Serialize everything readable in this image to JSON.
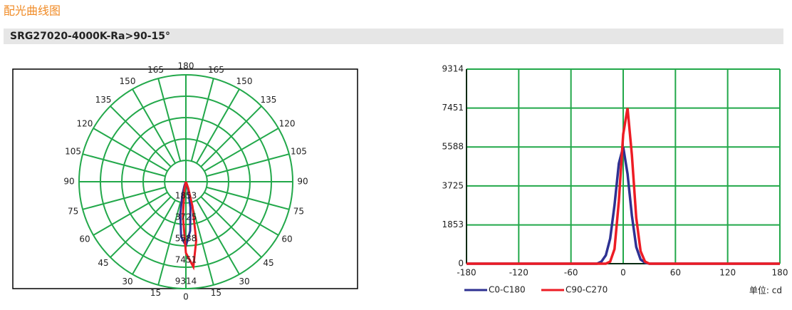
{
  "header": {
    "title": "配光曲线图",
    "model": "SRG27020-4000K-Ra>90-15°"
  },
  "chart_data": [
    {
      "type": "polar",
      "rlim": [
        0,
        9314
      ],
      "rticks": [
        1853,
        3725,
        5588,
        7451,
        9314
      ],
      "thetaticks": [
        0,
        15,
        30,
        45,
        60,
        75,
        90,
        105,
        120,
        135,
        150,
        165,
        180
      ],
      "grid": true,
      "grid_color": "#22a84a"
    },
    {
      "type": "line",
      "x": [
        -180,
        -30,
        -25,
        -20,
        -15,
        -10,
        -5,
        0,
        5,
        10,
        15,
        20,
        25,
        30,
        180
      ],
      "series": [
        {
          "name": "C0-C180",
          "color": "#2e3192",
          "values": [
            0,
            0,
            100,
            400,
            1200,
            2800,
            4800,
            5588,
            4300,
            2300,
            800,
            200,
            50,
            0,
            0
          ]
        },
        {
          "name": "C90-C270",
          "color": "#ed1c24",
          "values": [
            0,
            0,
            0,
            0,
            100,
            700,
            3000,
            6200,
            7451,
            5200,
            2200,
            600,
            100,
            0,
            0
          ]
        }
      ],
      "xlim": [
        -180,
        180
      ],
      "ylim": [
        0,
        9314
      ],
      "xticks": [
        -180,
        -120,
        -60,
        0,
        60,
        120,
        180
      ],
      "yticks": [
        0,
        1853,
        3725,
        5588,
        7451,
        9314
      ],
      "grid": true,
      "grid_color": "#22a84a",
      "unit_label": "单位:  cd"
    }
  ]
}
